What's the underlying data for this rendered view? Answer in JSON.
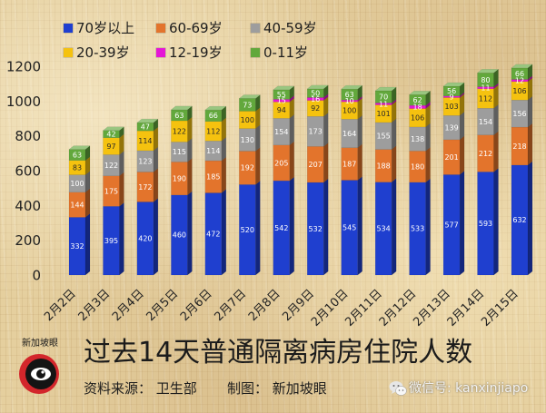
{
  "chart_data": {
    "type": "bar",
    "stacked": true,
    "title": "过去14天普通隔离病房住院人数",
    "categories": [
      "2月2日",
      "2月3日",
      "2月4日",
      "2月5日",
      "2月6日",
      "2月7日",
      "2月8日",
      "2月9日",
      "2月10日",
      "2月11日",
      "2月12日",
      "2月13日",
      "2月14日",
      "2月15日"
    ],
    "ylim": [
      0,
      1200
    ],
    "yticks": [
      0,
      200,
      400,
      600,
      800,
      1000,
      1200
    ],
    "grid": false,
    "legend_position": "top-left",
    "series": [
      {
        "name": "70岁以上",
        "color": "#1f3fcf",
        "values": [
          332,
          395,
          420,
          460,
          472,
          520,
          542,
          532,
          545,
          534,
          533,
          577,
          593,
          632
        ]
      },
      {
        "name": "60-69岁",
        "color": "#e3742c",
        "values": [
          144,
          175,
          172,
          190,
          185,
          192,
          205,
          207,
          187,
          188,
          180,
          201,
          212,
          218
        ]
      },
      {
        "name": "40-59岁",
        "color": "#9d9d9d",
        "values": [
          100,
          122,
          123,
          115,
          114,
          130,
          154,
          173,
          164,
          155,
          138,
          139,
          154,
          156
        ]
      },
      {
        "name": "20-39岁",
        "color": "#f5c20f",
        "values": [
          83,
          97,
          114,
          122,
          112,
          100,
          94,
          92,
          100,
          101,
          106,
          103,
          112,
          106
        ]
      },
      {
        "name": "12-19岁",
        "color": "#e516d6",
        "values": [
          null,
          null,
          null,
          null,
          null,
          null,
          15,
          16,
          10,
          11,
          18,
          9,
          11,
          12
        ]
      },
      {
        "name": "0-11岁",
        "color": "#62a83c",
        "values": [
          63,
          42,
          47,
          63,
          66,
          73,
          55,
          50,
          63,
          70,
          62,
          56,
          80,
          66
        ]
      }
    ]
  },
  "source": {
    "text": "资料来源： 卫生部"
  },
  "credit": {
    "text": "制图： 新加坡眼"
  },
  "watermark": {
    "icon": "wechat-icon",
    "text": "微信号: kanxinjiapo"
  },
  "logo": {
    "icon": "eye-logo-icon",
    "text": "新加坡眼"
  }
}
